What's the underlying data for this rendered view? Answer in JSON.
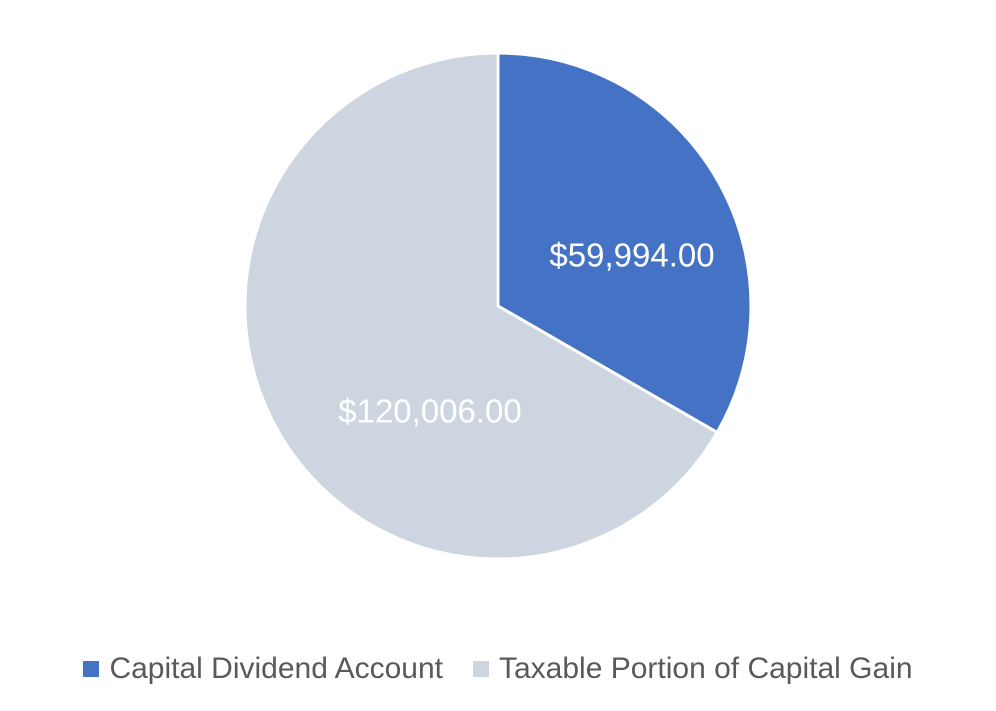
{
  "chart_data": {
    "type": "pie",
    "title": "",
    "categories": [
      "Capital Dividend Account",
      "Taxable Portion of Capital Gain"
    ],
    "values": [
      59994.0,
      120006.0
    ],
    "data_labels": [
      "$59,994.00",
      "$120,006.00"
    ],
    "colors": [
      "#4472C4",
      "#CDD5E0"
    ],
    "start": "12 o'clock, clockwise",
    "legend_placement": "bottom-center",
    "slice_separator_color": "#ffffff"
  }
}
